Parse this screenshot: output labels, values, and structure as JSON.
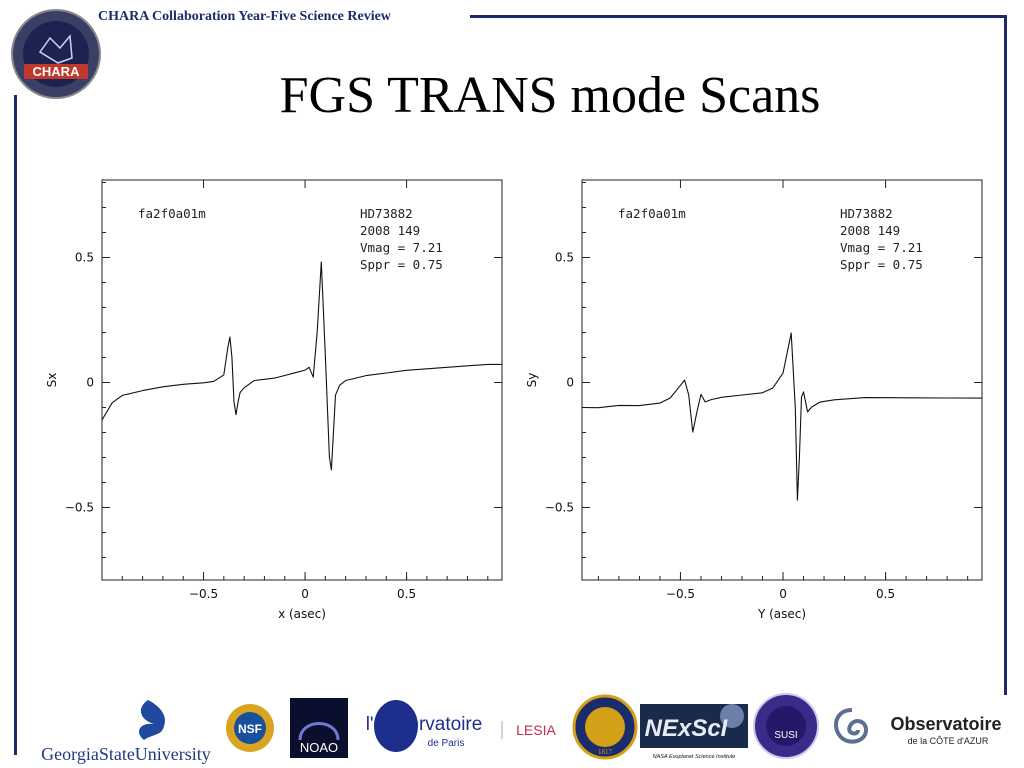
{
  "header": {
    "text": "CHARA Collaboration Year-Five Science Review"
  },
  "title": "FGS TRANS mode Scans",
  "logo": {
    "badge_text": "CHARA"
  },
  "chart_data": [
    {
      "type": "line",
      "xlabel": "x (asec)",
      "ylabel": "Sx",
      "xlim": [
        -1.0,
        0.97
      ],
      "ylim": [
        -0.79,
        0.81
      ],
      "xticks": [
        -0.5,
        0,
        0.5
      ],
      "xtick_labels": [
        "−0.5",
        "0",
        "0.5"
      ],
      "yticks": [
        -0.5,
        0,
        0.5
      ],
      "ytick_labels": [
        "−0.5",
        "0",
        "0.5"
      ],
      "annotation_left": "fa2f0a01m",
      "annotation_right": [
        "HD73882",
        "2008 149",
        "Vmag =  7.21",
        "Sppr =  0.75"
      ],
      "series": [
        {
          "x": [
            -1.0,
            -0.95,
            -0.9,
            -0.8,
            -0.7,
            -0.6,
            -0.5,
            -0.45,
            -0.4,
            -0.38,
            -0.37,
            -0.36,
            -0.35,
            -0.34,
            -0.33,
            -0.32,
            -0.3,
            -0.25,
            -0.2,
            -0.15,
            -0.1,
            -0.05,
            0.0,
            0.02,
            0.04,
            0.06,
            0.08,
            0.1,
            0.12,
            0.13,
            0.15,
            0.17,
            0.2,
            0.25,
            0.3,
            0.4,
            0.5,
            0.6,
            0.7,
            0.8,
            0.9,
            0.97
          ],
          "y": [
            -0.15,
            -0.08,
            -0.05,
            -0.03,
            -0.015,
            -0.005,
            0.0,
            0.005,
            0.03,
            0.14,
            0.18,
            0.1,
            -0.08,
            -0.13,
            -0.08,
            -0.04,
            -0.02,
            0.01,
            0.015,
            0.02,
            0.03,
            0.04,
            0.05,
            0.06,
            0.02,
            0.2,
            0.48,
            0.1,
            -0.3,
            -0.35,
            -0.05,
            -0.01,
            0.01,
            0.02,
            0.03,
            0.04,
            0.05,
            0.055,
            0.06,
            0.065,
            0.07,
            0.07
          ]
        }
      ]
    },
    {
      "type": "line",
      "xlabel": "Y (asec)",
      "ylabel": "Sy",
      "xlim": [
        -0.98,
        0.97
      ],
      "ylim": [
        -0.79,
        0.81
      ],
      "xticks": [
        -0.5,
        0,
        0.5
      ],
      "xtick_labels": [
        "−0.5",
        "0",
        "0.5"
      ],
      "yticks": [
        -0.5,
        0,
        0.5
      ],
      "ytick_labels": [
        "−0.5",
        "0",
        "0.5"
      ],
      "annotation_left": "fa2f0a01m",
      "annotation_right": [
        "HD73882",
        "2008 149",
        "Vmag =  7.21",
        "Sppr =  0.75"
      ],
      "series": [
        {
          "x": [
            -0.98,
            -0.9,
            -0.8,
            -0.7,
            -0.6,
            -0.55,
            -0.5,
            -0.48,
            -0.46,
            -0.44,
            -0.42,
            -0.4,
            -0.38,
            -0.35,
            -0.3,
            -0.2,
            -0.1,
            -0.05,
            0.0,
            0.02,
            0.04,
            0.06,
            0.07,
            0.08,
            0.09,
            0.1,
            0.12,
            0.14,
            0.18,
            0.25,
            0.4,
            0.6,
            0.8,
            0.97
          ],
          "y": [
            -0.1,
            -0.1,
            -0.09,
            -0.09,
            -0.08,
            -0.06,
            -0.01,
            0.01,
            -0.05,
            -0.2,
            -0.12,
            -0.05,
            -0.08,
            -0.07,
            -0.06,
            -0.05,
            -0.04,
            -0.02,
            0.04,
            0.12,
            0.2,
            -0.1,
            -0.47,
            -0.3,
            -0.06,
            -0.04,
            -0.12,
            -0.1,
            -0.08,
            -0.07,
            -0.06,
            -0.06,
            -0.06,
            -0.06
          ]
        }
      ]
    }
  ],
  "sponsor_logos": [
    {
      "name": "georgia-state-university-logo",
      "text": "GeorgiaStateUniversity"
    },
    {
      "name": "nsf-logo",
      "text": "NSF"
    },
    {
      "name": "noao-logo",
      "text": "NOAO"
    },
    {
      "name": "observatoire-paris-logo",
      "text": "l'Observatoire",
      "sub": "de Paris"
    },
    {
      "name": "lesia-logo",
      "text": "LESIA"
    },
    {
      "name": "university-of-michigan-seal",
      "text": "1817"
    },
    {
      "name": "nexsci-logo",
      "text": "NExScI",
      "sub": "NASA Exoplanet Science Institute"
    },
    {
      "name": "susi-logo",
      "text": "SUSI"
    },
    {
      "name": "observatoire-cote-azur-logo",
      "text": "Observatoire",
      "sub": "de la CÔTE d'AZUR"
    }
  ],
  "colors": {
    "frame": "#1f2a6e",
    "trace": "#111111"
  }
}
